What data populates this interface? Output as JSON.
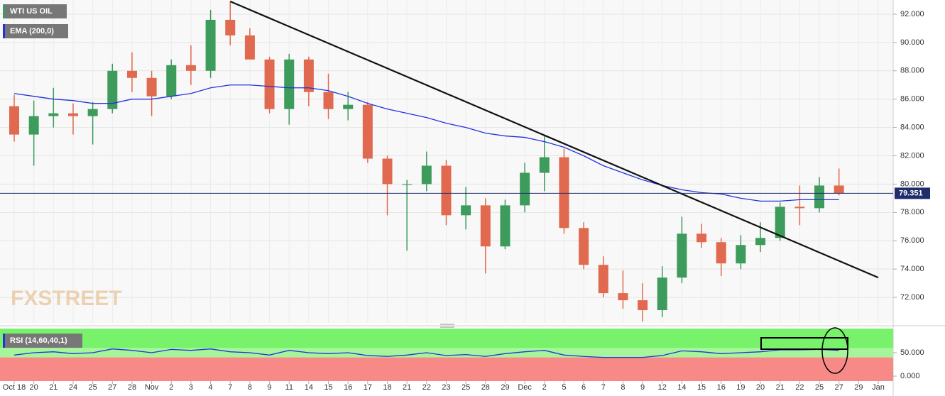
{
  "chart_data": {
    "type": "candlestick",
    "title": "WTI US OIL",
    "categories": [
      "Oct 18",
      "20",
      "21",
      "24",
      "25",
      "27",
      "28",
      "Nov",
      "2",
      "3",
      "4",
      "7",
      "8",
      "9",
      "11",
      "14",
      "15",
      "16",
      "17",
      "18",
      "21",
      "22",
      "23",
      "25",
      "28",
      "29",
      "Dec",
      "2",
      "5",
      "6",
      "7",
      "8",
      "9",
      "12",
      "14",
      "15",
      "16",
      "19",
      "20",
      "21",
      "22",
      "25",
      "27",
      "29",
      "Jan"
    ],
    "open": [
      85.5,
      83.5,
      84.8,
      85,
      84.8,
      85.3,
      88,
      87.5,
      86.2,
      88.4,
      88,
      91.6,
      90.5,
      88.8,
      85.3,
      88.8,
      86.5,
      85.3,
      85.6,
      81.8,
      80,
      80,
      81.3,
      77.8,
      78.5,
      75.6,
      78.5,
      80.8,
      81.9,
      76.9,
      74.3,
      72.3,
      71.8,
      71.1,
      73.4,
      76.5,
      75.9,
      74.4,
      75.7,
      76.2,
      78.4,
      78.3,
      79.9,
      null,
      null
    ],
    "high": [
      86.3,
      85.9,
      86.8,
      85.7,
      85.8,
      88.5,
      89.3,
      88,
      88.8,
      89.8,
      92.3,
      92.9,
      91,
      89,
      89.2,
      89,
      87.8,
      86.5,
      85.8,
      82,
      80.3,
      82.3,
      81.7,
      79.8,
      79,
      78.9,
      81.5,
      83.4,
      82.5,
      77.3,
      74.9,
      73.9,
      73,
      74.2,
      77.7,
      77.2,
      76.2,
      76.4,
      77.3,
      78.7,
      79.9,
      80.5,
      81.1,
      null,
      null
    ],
    "low": [
      83,
      81.3,
      84,
      83.5,
      82.8,
      85,
      86.5,
      84.8,
      86,
      87,
      87.5,
      89.8,
      88.8,
      85,
      84.2,
      85.5,
      84.6,
      84.5,
      81.5,
      77.8,
      75.3,
      79.5,
      77.1,
      76.8,
      73.7,
      75.4,
      78,
      79.5,
      76.5,
      74,
      72,
      71.2,
      70.3,
      70.6,
      73,
      75.5,
      73.5,
      74,
      75.2,
      76,
      77.1,
      78,
      79.2,
      null,
      null
    ],
    "close": [
      83.5,
      84.8,
      85,
      84.8,
      85.3,
      88,
      87.5,
      86.2,
      88.4,
      88,
      91.6,
      90.5,
      88.8,
      85.3,
      88.8,
      86.5,
      85.3,
      85.6,
      81.8,
      80,
      80,
      81.3,
      77.8,
      78.5,
      75.6,
      78.5,
      80.8,
      81.9,
      76.9,
      74.3,
      72.3,
      71.8,
      71.1,
      73.4,
      76.5,
      75.9,
      74.4,
      75.7,
      76.2,
      78.4,
      78.3,
      79.9,
      79.35,
      null,
      null
    ],
    "up_color": "#3d9b5c",
    "down_color": "#e0694f",
    "ema": {
      "name": "EMA (200,0)",
      "color": "#2233dd",
      "values": [
        86.4,
        86.2,
        86,
        85.9,
        85.7,
        85.7,
        86,
        86,
        86.2,
        86.4,
        86.8,
        87,
        87,
        86.9,
        86.8,
        86.8,
        86.6,
        86.2,
        85.7,
        85.3,
        85,
        84.7,
        84.3,
        84,
        83.6,
        83.4,
        83.3,
        83,
        82.6,
        82,
        81.3,
        80.8,
        80.3,
        79.9,
        79.6,
        79.4,
        79.3,
        79,
        78.8,
        78.8,
        78.9,
        78.9,
        78.9,
        null,
        null
      ]
    },
    "last_price": 79.351,
    "trendline": {
      "start": {
        "category": 11,
        "value": 92.9
      },
      "end": {
        "category": 44,
        "value": 73.4
      }
    },
    "ylim": [
      70.2,
      93
    ],
    "yticks": [
      {
        "value": 72,
        "label": "72.000"
      },
      {
        "value": 74,
        "label": "74.000"
      },
      {
        "value": 76,
        "label": "76.000"
      },
      {
        "value": 78,
        "label": "78.000"
      },
      {
        "value": 80,
        "label": "80.000"
      },
      {
        "value": 82,
        "label": "82.000"
      },
      {
        "value": 84,
        "label": "84.000"
      },
      {
        "value": 86,
        "label": "86.000"
      },
      {
        "value": 88,
        "label": "88.000"
      },
      {
        "value": 90,
        "label": "90.000"
      },
      {
        "value": 92,
        "label": "92.000"
      }
    ],
    "grid": true,
    "watermark": "FXSTREET",
    "rsi": {
      "name": "RSI (14,60,40,1)",
      "color": "#2233dd",
      "levels": [
        60,
        40
      ],
      "values": [
        45,
        50,
        52,
        48,
        50,
        58,
        55,
        50,
        57,
        55,
        58,
        52,
        50,
        45,
        55,
        50,
        48,
        50,
        44,
        42,
        45,
        50,
        44,
        46,
        42,
        48,
        52,
        55,
        45,
        42,
        40,
        40,
        40,
        44,
        54,
        52,
        48,
        50,
        52,
        56,
        56,
        57,
        55,
        null,
        null
      ],
      "ylim": [
        -10.6,
        101.5
      ],
      "yticks": [
        {
          "value": 50,
          "label": "50.000"
        },
        {
          "value": 0,
          "label": "0.000"
        }
      ]
    }
  }
}
